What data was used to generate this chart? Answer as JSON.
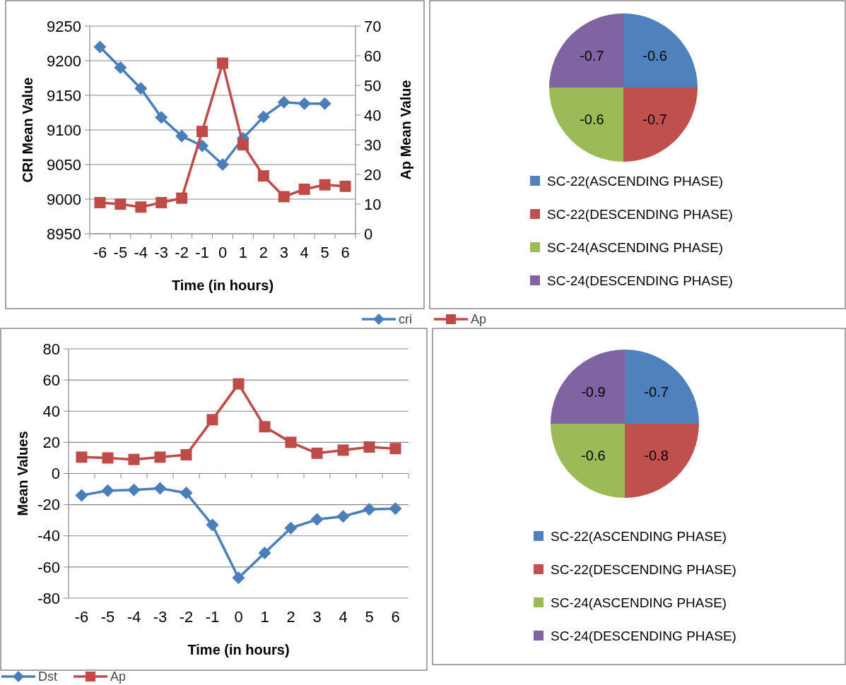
{
  "chart_data": [
    {
      "type": "line",
      "xlabel": "Time (in hours)",
      "ylabel": "CRI Mean Value",
      "y2label": "Ap Mean Value",
      "categories": [
        "-6",
        "-5",
        "-4",
        "-3",
        "-2",
        "-1",
        "0",
        "1",
        "2",
        "3",
        "4",
        "5",
        "6"
      ],
      "ylim": [
        8950,
        9250
      ],
      "yticks": [
        8950,
        9000,
        9050,
        9100,
        9150,
        9200,
        9250
      ],
      "y2lim": [
        0,
        70
      ],
      "y2ticks": [
        0,
        10,
        20,
        30,
        40,
        50,
        60,
        70
      ],
      "grid": "y",
      "legend": "bottom",
      "line_style": "solid",
      "series": [
        {
          "name": "cri",
          "color": "#4a7ebb",
          "marker": "diamond",
          "values": [
            9220,
            9190,
            9160,
            9118,
            9091,
            9077,
            9050,
            9088,
            9119,
            9140,
            9138,
            9138,
            null
          ]
        },
        {
          "name": "Ap",
          "color": "#be4b48",
          "marker": "square",
          "axis": "y2",
          "values": [
            10.5,
            10,
            9,
            10.5,
            12,
            34.5,
            57.5,
            30,
            19.5,
            12.5,
            15,
            16.5,
            16
          ]
        }
      ]
    },
    {
      "type": "pie",
      "categories": [
        "SC-22(ASCENDING PHASE)",
        "SC-22(DESCENDING PHASE)",
        "SC-24(ASCENDING PHASE)",
        "SC-24(DESCENDING PHASE)"
      ],
      "values": [
        25,
        25,
        25,
        25
      ],
      "colors": [
        "#4f81bd",
        "#c0504d",
        "#9bbb59",
        "#8064a2"
      ],
      "legend": "bottom",
      "annotations": [
        {
          "text": "-0.6",
          "x": "SC-22(ASCENDING PHASE)"
        },
        {
          "text": "-0.7",
          "x": "SC-22(DESCENDING PHASE)"
        },
        {
          "text": "-0.6",
          "x": "SC-24(ASCENDING PHASE)"
        },
        {
          "text": "-0.7",
          "x": "SC-24(DESCENDING PHASE)"
        }
      ]
    },
    {
      "type": "line",
      "xlabel": "Time (in hours)",
      "ylabel": "Mean Values",
      "categories": [
        "-6",
        "-5",
        "-4",
        "-3",
        "-2",
        "-1",
        "0",
        "1",
        "2",
        "3",
        "4",
        "5",
        "6"
      ],
      "ylim": [
        -80,
        80
      ],
      "yticks": [
        -80,
        -60,
        -40,
        -20,
        0,
        20,
        40,
        60,
        80
      ],
      "grid": "y",
      "legend": "bottom",
      "line_style": "solid",
      "series": [
        {
          "name": "Dst",
          "color": "#4a7ebb",
          "marker": "diamond",
          "values": [
            -14,
            -11,
            -10.5,
            -9.5,
            -12.5,
            -33,
            -67,
            -51,
            -35,
            -29.5,
            -27.5,
            -23,
            -22.5
          ]
        },
        {
          "name": "Ap",
          "color": "#be4b48",
          "marker": "square",
          "values": [
            10.5,
            10,
            9,
            10.5,
            12,
            34.5,
            57.5,
            30,
            20,
            13,
            15,
            17,
            16
          ]
        }
      ]
    },
    {
      "type": "pie",
      "categories": [
        "SC-22(ASCENDING PHASE)",
        "SC-22(DESCENDING PHASE)",
        "SC-24(ASCENDING PHASE)",
        "SC-24(DESCENDING PHASE)"
      ],
      "values": [
        25,
        25,
        25,
        25
      ],
      "colors": [
        "#4f81bd",
        "#c0504d",
        "#9bbb59",
        "#8064a2"
      ],
      "legend": "bottom",
      "annotations": [
        {
          "text": "-0.7",
          "x": "SC-22(ASCENDING PHASE)"
        },
        {
          "text": "-0.8",
          "x": "SC-22(DESCENDING PHASE)"
        },
        {
          "text": "-0.6",
          "x": "SC-24(ASCENDING PHASE)"
        },
        {
          "text": "-0.9",
          "x": "SC-24(DESCENDING PHASE)"
        }
      ]
    }
  ]
}
